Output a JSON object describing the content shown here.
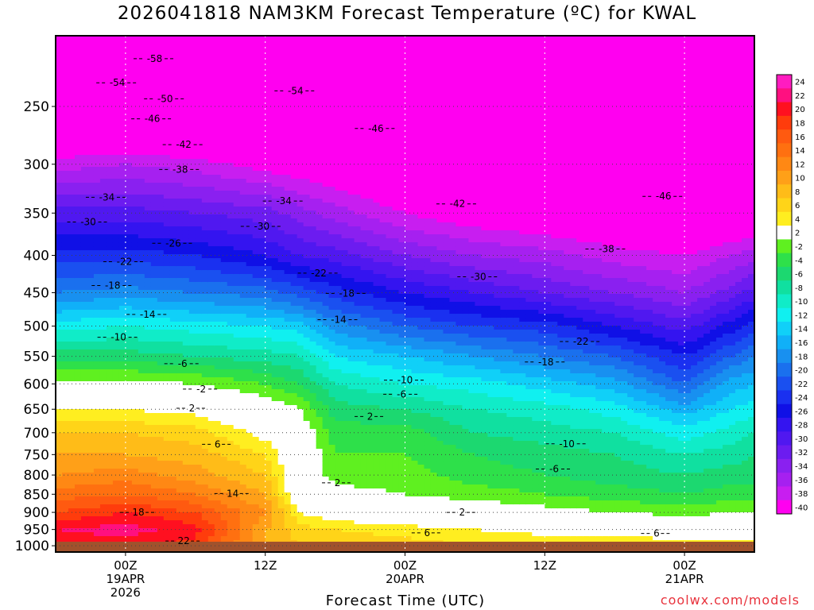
{
  "title": "2026041818 NAM3KM Forecast Temperature (ºC) for KWAL",
  "xlabel": "Forecast Time (UTC)",
  "credit": "coolwx.com/models",
  "chart_data": {
    "type": "heatmap",
    "title": "2026041818 NAM3KM Forecast Temperature (ºC) for KWAL",
    "xlabel": "Forecast Time (UTC)",
    "ylabel": "",
    "x_range_hours": [
      0,
      60
    ],
    "x_ticks": [
      {
        "hour": 6,
        "lines": [
          "00Z",
          "19APR",
          "2026"
        ]
      },
      {
        "hour": 18,
        "lines": [
          "12Z"
        ]
      },
      {
        "hour": 30,
        "lines": [
          "00Z",
          "20APR"
        ]
      },
      {
        "hour": 42,
        "lines": [
          "12Z"
        ]
      },
      {
        "hour": 54,
        "lines": [
          "00Z",
          "21APR"
        ]
      }
    ],
    "y_ticks": [
      250,
      300,
      350,
      400,
      450,
      500,
      550,
      600,
      650,
      700,
      750,
      800,
      850,
      900,
      950,
      1000
    ],
    "ylim": [
      200,
      1020
    ],
    "y_axis": "pressure (log scale, inverted)",
    "grid": true,
    "colorbar": {
      "placement": "right",
      "labels": [
        24,
        22,
        20,
        18,
        16,
        14,
        12,
        10,
        8,
        6,
        4,
        2,
        -2,
        -4,
        -6,
        -8,
        -10,
        -12,
        -14,
        -16,
        -18,
        -20,
        -22,
        -24,
        -26,
        -28,
        -30,
        -32,
        -34,
        -36,
        -38,
        -40
      ],
      "colors": [
        "#ff1cc0",
        "#ff1080",
        "#ff1020",
        "#ff3c0c",
        "#ff5a10",
        "#ff7010",
        "#ff8814",
        "#ffa018",
        "#ffbc18",
        "#ffd418",
        "#ffee20",
        "#ffffff",
        "#5ff020",
        "#2ee04a",
        "#1cd870",
        "#10e0a0",
        "#10ecc8",
        "#10f0f0",
        "#10d0f8",
        "#10b0f8",
        "#1890f0",
        "#1a70ee",
        "#1a50f0",
        "#1a30f0",
        "#1010e6",
        "#3414f0",
        "#5018f0",
        "#6c1cf0",
        "#8a20f0",
        "#a620f0",
        "#c81ef0",
        "#ff00f0"
      ]
    },
    "temperature_profiles": {
      "hours": [
        0,
        6,
        12,
        18,
        21,
        24,
        30,
        36,
        42,
        48,
        54,
        58,
        60
      ],
      "levels": [
        200,
        250,
        300,
        350,
        400,
        450,
        500,
        550,
        600,
        650,
        700,
        750,
        800,
        850,
        900,
        950,
        1000
      ],
      "temps": [
        [
          -57,
          -48,
          -39,
          -31,
          -25,
          -20,
          -13,
          -7,
          -1,
          4,
          8,
          10,
          12,
          15,
          18,
          22,
          20
        ],
        [
          -57,
          -48,
          -38,
          -31,
          -25,
          -19,
          -12,
          -7,
          -1,
          4,
          8,
          10,
          13,
          16,
          20,
          23,
          21
        ],
        [
          -57,
          -49,
          -39,
          -32,
          -26,
          -20,
          -13,
          -8,
          -2,
          3,
          7,
          9,
          11,
          14,
          18,
          21,
          19
        ],
        [
          -58,
          -50,
          -41,
          -33,
          -28,
          -21,
          -14,
          -9,
          -4,
          0,
          3,
          6,
          8,
          10,
          12,
          10,
          10
        ],
        [
          -58,
          -51,
          -42,
          -35,
          -30,
          -23,
          -15,
          -10,
          -6,
          -2,
          0,
          1,
          0,
          1,
          4,
          7,
          8
        ],
        [
          -58,
          -52,
          -43,
          -37,
          -31,
          -25,
          -19,
          -14,
          -10,
          -7,
          -5,
          -4,
          -3,
          -1,
          2,
          6,
          8
        ],
        [
          -58,
          -53,
          -45,
          -40,
          -34,
          -28,
          -22,
          -16,
          -12,
          -8,
          -5,
          -4,
          -3,
          -2,
          1,
          5,
          7
        ],
        [
          -58,
          -54,
          -46,
          -42,
          -36,
          -30,
          -24,
          -18,
          -13,
          -10,
          -8,
          -6,
          -5,
          -3,
          0,
          4,
          6
        ],
        [
          -58,
          -55,
          -47,
          -43,
          -37,
          -32,
          -25,
          -20,
          -15,
          -11,
          -9,
          -7,
          -6,
          -4,
          -1,
          3,
          6
        ],
        [
          -57,
          -54,
          -47,
          -44,
          -39,
          -34,
          -28,
          -22,
          -17,
          -13,
          -10,
          -8,
          -7,
          -5,
          -2,
          3,
          6
        ],
        [
          -56,
          -53,
          -46,
          -45,
          -40,
          -36,
          -31,
          -26,
          -22,
          -17,
          -13,
          -10,
          -8,
          -6,
          -3,
          2,
          5
        ],
        [
          -57,
          -54,
          -47,
          -44,
          -38,
          -33,
          -27,
          -22,
          -17,
          -14,
          -11,
          -9,
          -7,
          -5,
          -2,
          2,
          5
        ],
        [
          -57,
          -54,
          -47,
          -44,
          -37,
          -31,
          -25,
          -20,
          -16,
          -13,
          -10,
          -8,
          -7,
          -5,
          -2,
          2,
          5
        ]
      ]
    },
    "contour_labels": [
      {
        "text": "-58",
        "hour": 8.5,
        "p": 215
      },
      {
        "text": "-54",
        "hour": 5.3,
        "p": 232
      },
      {
        "text": "-54",
        "hour": 20.6,
        "p": 238
      },
      {
        "text": "-50",
        "hour": 9.4,
        "p": 244
      },
      {
        "text": "-46",
        "hour": 8.3,
        "p": 260
      },
      {
        "text": "-46",
        "hour": 27.5,
        "p": 268
      },
      {
        "text": "-42",
        "hour": 11.0,
        "p": 282
      },
      {
        "text": "-38",
        "hour": 10.7,
        "p": 305
      },
      {
        "text": "-34",
        "hour": 4.4,
        "p": 333
      },
      {
        "text": "-34",
        "hour": 19.6,
        "p": 337
      },
      {
        "text": "-42",
        "hour": 34.5,
        "p": 340
      },
      {
        "text": "-46",
        "hour": 52.2,
        "p": 332
      },
      {
        "text": "-30",
        "hour": 2.8,
        "p": 360
      },
      {
        "text": "-30",
        "hour": 17.7,
        "p": 365
      },
      {
        "text": "-26",
        "hour": 10.1,
        "p": 385
      },
      {
        "text": "-38",
        "hour": 47.3,
        "p": 392
      },
      {
        "text": "-22",
        "hour": 5.9,
        "p": 408
      },
      {
        "text": "-22",
        "hour": 22.6,
        "p": 423
      },
      {
        "text": "-30",
        "hour": 36.3,
        "p": 428
      },
      {
        "text": "-18",
        "hour": 4.9,
        "p": 440
      },
      {
        "text": "-18",
        "hour": 25.0,
        "p": 451
      },
      {
        "text": "-14",
        "hour": 7.9,
        "p": 482
      },
      {
        "text": "-14",
        "hour": 24.3,
        "p": 490
      },
      {
        "text": "-10",
        "hour": 5.4,
        "p": 518
      },
      {
        "text": "-22",
        "hour": 45.1,
        "p": 525
      },
      {
        "text": "-6",
        "hour": 10.9,
        "p": 563
      },
      {
        "text": "-18",
        "hour": 42.1,
        "p": 560
      },
      {
        "text": "-10",
        "hour": 30.0,
        "p": 593
      },
      {
        "text": "-2",
        "hour": 12.5,
        "p": 610
      },
      {
        "text": "-6",
        "hour": 29.7,
        "p": 620
      },
      {
        "text": "2",
        "hour": 11.7,
        "p": 648
      },
      {
        "text": "2",
        "hour": 27.0,
        "p": 665
      },
      {
        "text": "6",
        "hour": 13.9,
        "p": 726
      },
      {
        "text": "-10",
        "hour": 43.9,
        "p": 725
      },
      {
        "text": "-6",
        "hour": 42.8,
        "p": 785
      },
      {
        "text": "2",
        "hour": 24.2,
        "p": 820
      },
      {
        "text": "14",
        "hour": 15.2,
        "p": 848
      },
      {
        "text": "2",
        "hour": 34.9,
        "p": 900
      },
      {
        "text": "18",
        "hour": 7.1,
        "p": 900
      },
      {
        "text": "6",
        "hour": 31.9,
        "p": 960
      },
      {
        "text": "6",
        "hour": 51.6,
        "p": 962
      },
      {
        "text": "22",
        "hour": 11.0,
        "p": 985
      }
    ]
  }
}
